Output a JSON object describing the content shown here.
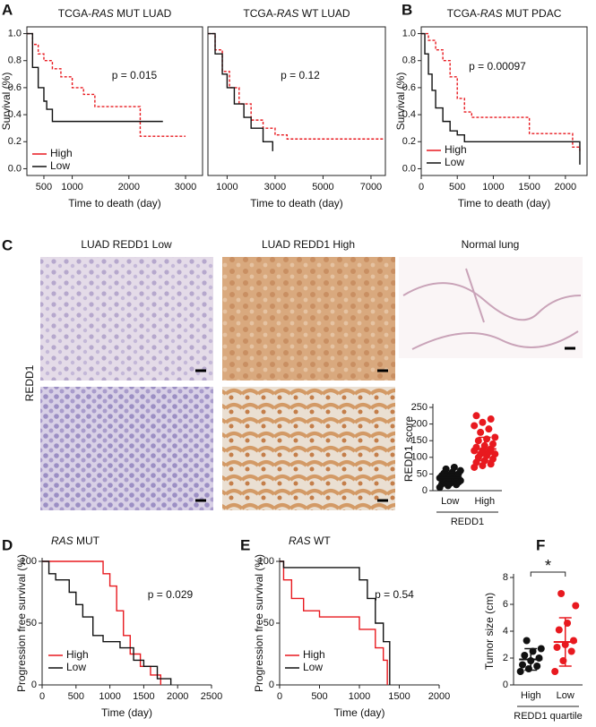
{
  "histology": {
    "panel_label": "C",
    "row_label": "REDD1",
    "columns": [
      "LUAD REDD1 Low",
      "LUAD REDD1 High",
      "Normal lung"
    ]
  },
  "chart_data": [
    {
      "type": "line",
      "step": true,
      "panel_label": "A",
      "title": "TCGA-RAS MUT LUAD",
      "xlabel": "Time to death (day)",
      "ylabel": "Survival (%)",
      "xlim": [
        200,
        3300
      ],
      "xticks": [
        500,
        1000,
        2000,
        3000
      ],
      "ylim": [
        -0.05,
        1.05
      ],
      "yticks": [
        {
          "value": 0,
          "label": "0.0"
        },
        0.2,
        0.4,
        0.6,
        0.8,
        {
          "value": 1,
          "label": "1.0"
        }
      ],
      "annotation": "p = 0.015",
      "legend": "lower left",
      "series": [
        {
          "name": "High",
          "color": "#e8191f",
          "line_style": "dashed",
          "x": [
            200,
            300,
            400,
            500,
            650,
            800,
            1000,
            1200,
            1400,
            2100,
            2200,
            3000
          ],
          "values": [
            1.0,
            0.92,
            0.85,
            0.8,
            0.74,
            0.68,
            0.6,
            0.55,
            0.46,
            0.46,
            0.24,
            0.24
          ]
        },
        {
          "name": "Low",
          "color": "#111111",
          "line_style": "solid",
          "x": [
            200,
            300,
            400,
            500,
            550,
            650,
            2600
          ],
          "values": [
            1.0,
            0.75,
            0.6,
            0.5,
            0.44,
            0.35,
            0.35
          ]
        }
      ]
    },
    {
      "type": "line",
      "step": true,
      "title": "TCGA-RAS WT LUAD",
      "xlabel": "Time to death (day)",
      "xlim": [
        200,
        7600
      ],
      "xticks": [
        1000,
        3000,
        5000,
        7000
      ],
      "ylim": [
        -0.05,
        1.05
      ],
      "annotation": "p = 0.12",
      "series": [
        {
          "name": "High",
          "color": "#e8191f",
          "line_style": "dashed",
          "x": [
            200,
            500,
            800,
            1100,
            1500,
            2000,
            2500,
            3000,
            3500,
            7500
          ],
          "values": [
            1.0,
            0.88,
            0.72,
            0.6,
            0.48,
            0.36,
            0.3,
            0.25,
            0.22,
            0.22
          ]
        },
        {
          "name": "Low",
          "color": "#111111",
          "line_style": "solid",
          "x": [
            200,
            500,
            800,
            1000,
            1300,
            1700,
            2000,
            2500,
            2900
          ],
          "values": [
            1.0,
            0.85,
            0.7,
            0.6,
            0.48,
            0.38,
            0.3,
            0.2,
            0.13
          ]
        }
      ]
    },
    {
      "type": "line",
      "step": true,
      "panel_label": "B",
      "title": "TCGA-RAS MUT PDAC",
      "xlabel": "Time to death (day)",
      "ylabel": "Survival (%)",
      "xlim": [
        0,
        2300
      ],
      "xticks": [
        0,
        500,
        1000,
        1500,
        2000
      ],
      "ylim": [
        -0.05,
        1.05
      ],
      "yticks": [
        {
          "value": 0,
          "label": "0.0"
        },
        0.2,
        0.4,
        0.6,
        0.8,
        {
          "value": 1,
          "label": "1.0"
        }
      ],
      "annotation": "p = 0.00097",
      "legend": "lower left",
      "series": [
        {
          "name": "High",
          "color": "#e8191f",
          "line_style": "dashed",
          "x": [
            0,
            100,
            200,
            300,
            400,
            500,
            600,
            700,
            1500,
            2100,
            2200
          ],
          "values": [
            1.0,
            0.95,
            0.88,
            0.8,
            0.68,
            0.52,
            0.42,
            0.38,
            0.26,
            0.16,
            0.13
          ]
        },
        {
          "name": "Low",
          "color": "#111111",
          "line_style": "solid",
          "x": [
            0,
            50,
            100,
            150,
            200,
            300,
            400,
            500,
            600,
            2100,
            2200
          ],
          "values": [
            1.0,
            0.85,
            0.7,
            0.58,
            0.45,
            0.35,
            0.28,
            0.25,
            0.2,
            0.2,
            0.03
          ]
        }
      ]
    },
    {
      "type": "strip",
      "ylabel": "REDD1 score",
      "xlabel": "REDD1",
      "categories": [
        "Low",
        "High"
      ],
      "ylim": [
        0,
        250
      ],
      "yticks": [
        0,
        50,
        100,
        150,
        200,
        250
      ],
      "groups": [
        {
          "color": "#111111",
          "values": [
            10,
            15,
            18,
            20,
            22,
            25,
            28,
            30,
            30,
            32,
            35,
            38,
            40,
            42,
            45,
            48,
            50,
            52,
            55,
            60,
            65,
            70
          ],
          "mean": 40,
          "sd": 15
        },
        {
          "color": "#e8191f",
          "values": [
            70,
            75,
            80,
            85,
            90,
            95,
            100,
            105,
            110,
            110,
            115,
            120,
            120,
            125,
            130,
            135,
            140,
            150,
            155,
            160,
            175,
            185,
            195,
            205,
            215,
            225
          ],
          "mean": 125,
          "sd": 35
        }
      ]
    },
    {
      "type": "line",
      "step": true,
      "panel_label": "D",
      "title": "RAS MUT",
      "xlabel": "Time (day)",
      "ylabel": "Progression free survival (%)",
      "xlim": [
        0,
        2500
      ],
      "xticks": [
        0,
        500,
        1000,
        1500,
        2000,
        2500
      ],
      "ylim": [
        0,
        100
      ],
      "yticks": [
        0,
        50,
        100
      ],
      "annotation": "p = 0.029",
      "legend": "lower left",
      "series": [
        {
          "name": "High",
          "color": "#e8191f",
          "line_style": "solid",
          "x": [
            0,
            900,
            1000,
            1100,
            1200,
            1300,
            1450,
            1600,
            1750
          ],
          "values": [
            100,
            90,
            80,
            60,
            40,
            25,
            15,
            8,
            0
          ]
        },
        {
          "name": "Low",
          "color": "#111111",
          "line_style": "solid",
          "x": [
            0,
            100,
            200,
            400,
            500,
            600,
            750,
            900,
            1150,
            1350,
            1500,
            1700,
            1900
          ],
          "values": [
            100,
            90,
            85,
            75,
            65,
            55,
            40,
            35,
            30,
            20,
            15,
            5,
            0
          ]
        }
      ]
    },
    {
      "type": "line",
      "step": true,
      "panel_label": "E",
      "title": "RAS WT",
      "xlabel": "Time (day)",
      "ylabel": "Progression free survival (%)",
      "xlim": [
        0,
        2000
      ],
      "xticks": [
        0,
        500,
        1000,
        1500,
        2000
      ],
      "ylim": [
        0,
        100
      ],
      "yticks": [
        0,
        50,
        100
      ],
      "annotation": "p = 0.54",
      "legend": "lower left",
      "series": [
        {
          "name": "High",
          "color": "#e8191f",
          "line_style": "solid",
          "x": [
            0,
            50,
            150,
            300,
            500,
            1000,
            1200,
            1300,
            1350
          ],
          "values": [
            100,
            85,
            70,
            60,
            55,
            45,
            30,
            20,
            0
          ]
        },
        {
          "name": "Low",
          "color": "#111111",
          "line_style": "solid",
          "x": [
            0,
            50,
            900,
            1000,
            1100,
            1200,
            1300,
            1380
          ],
          "values": [
            100,
            95,
            95,
            85,
            70,
            50,
            35,
            0
          ]
        }
      ]
    },
    {
      "type": "strip",
      "panel_label": "F",
      "ylabel": "Tumor size (cm)",
      "xlabel": "REDD1 quartile",
      "categories": [
        "High",
        "Low"
      ],
      "ylim": [
        0,
        8
      ],
      "yticks": [
        0,
        2,
        4,
        6,
        8
      ],
      "annotation": "*",
      "groups": [
        {
          "color": "#111111",
          "values": [
            1.0,
            1.2,
            1.4,
            1.5,
            1.8,
            2.0,
            2.2,
            2.5,
            2.7,
            3.3
          ],
          "mean": 1.9,
          "sd": 0.8
        },
        {
          "color": "#e8191f",
          "values": [
            1.0,
            1.8,
            2.5,
            2.8,
            3.0,
            3.3,
            4.1,
            4.6,
            5.9,
            6.8
          ],
          "mean": 3.2,
          "sd": 1.8
        }
      ]
    }
  ]
}
